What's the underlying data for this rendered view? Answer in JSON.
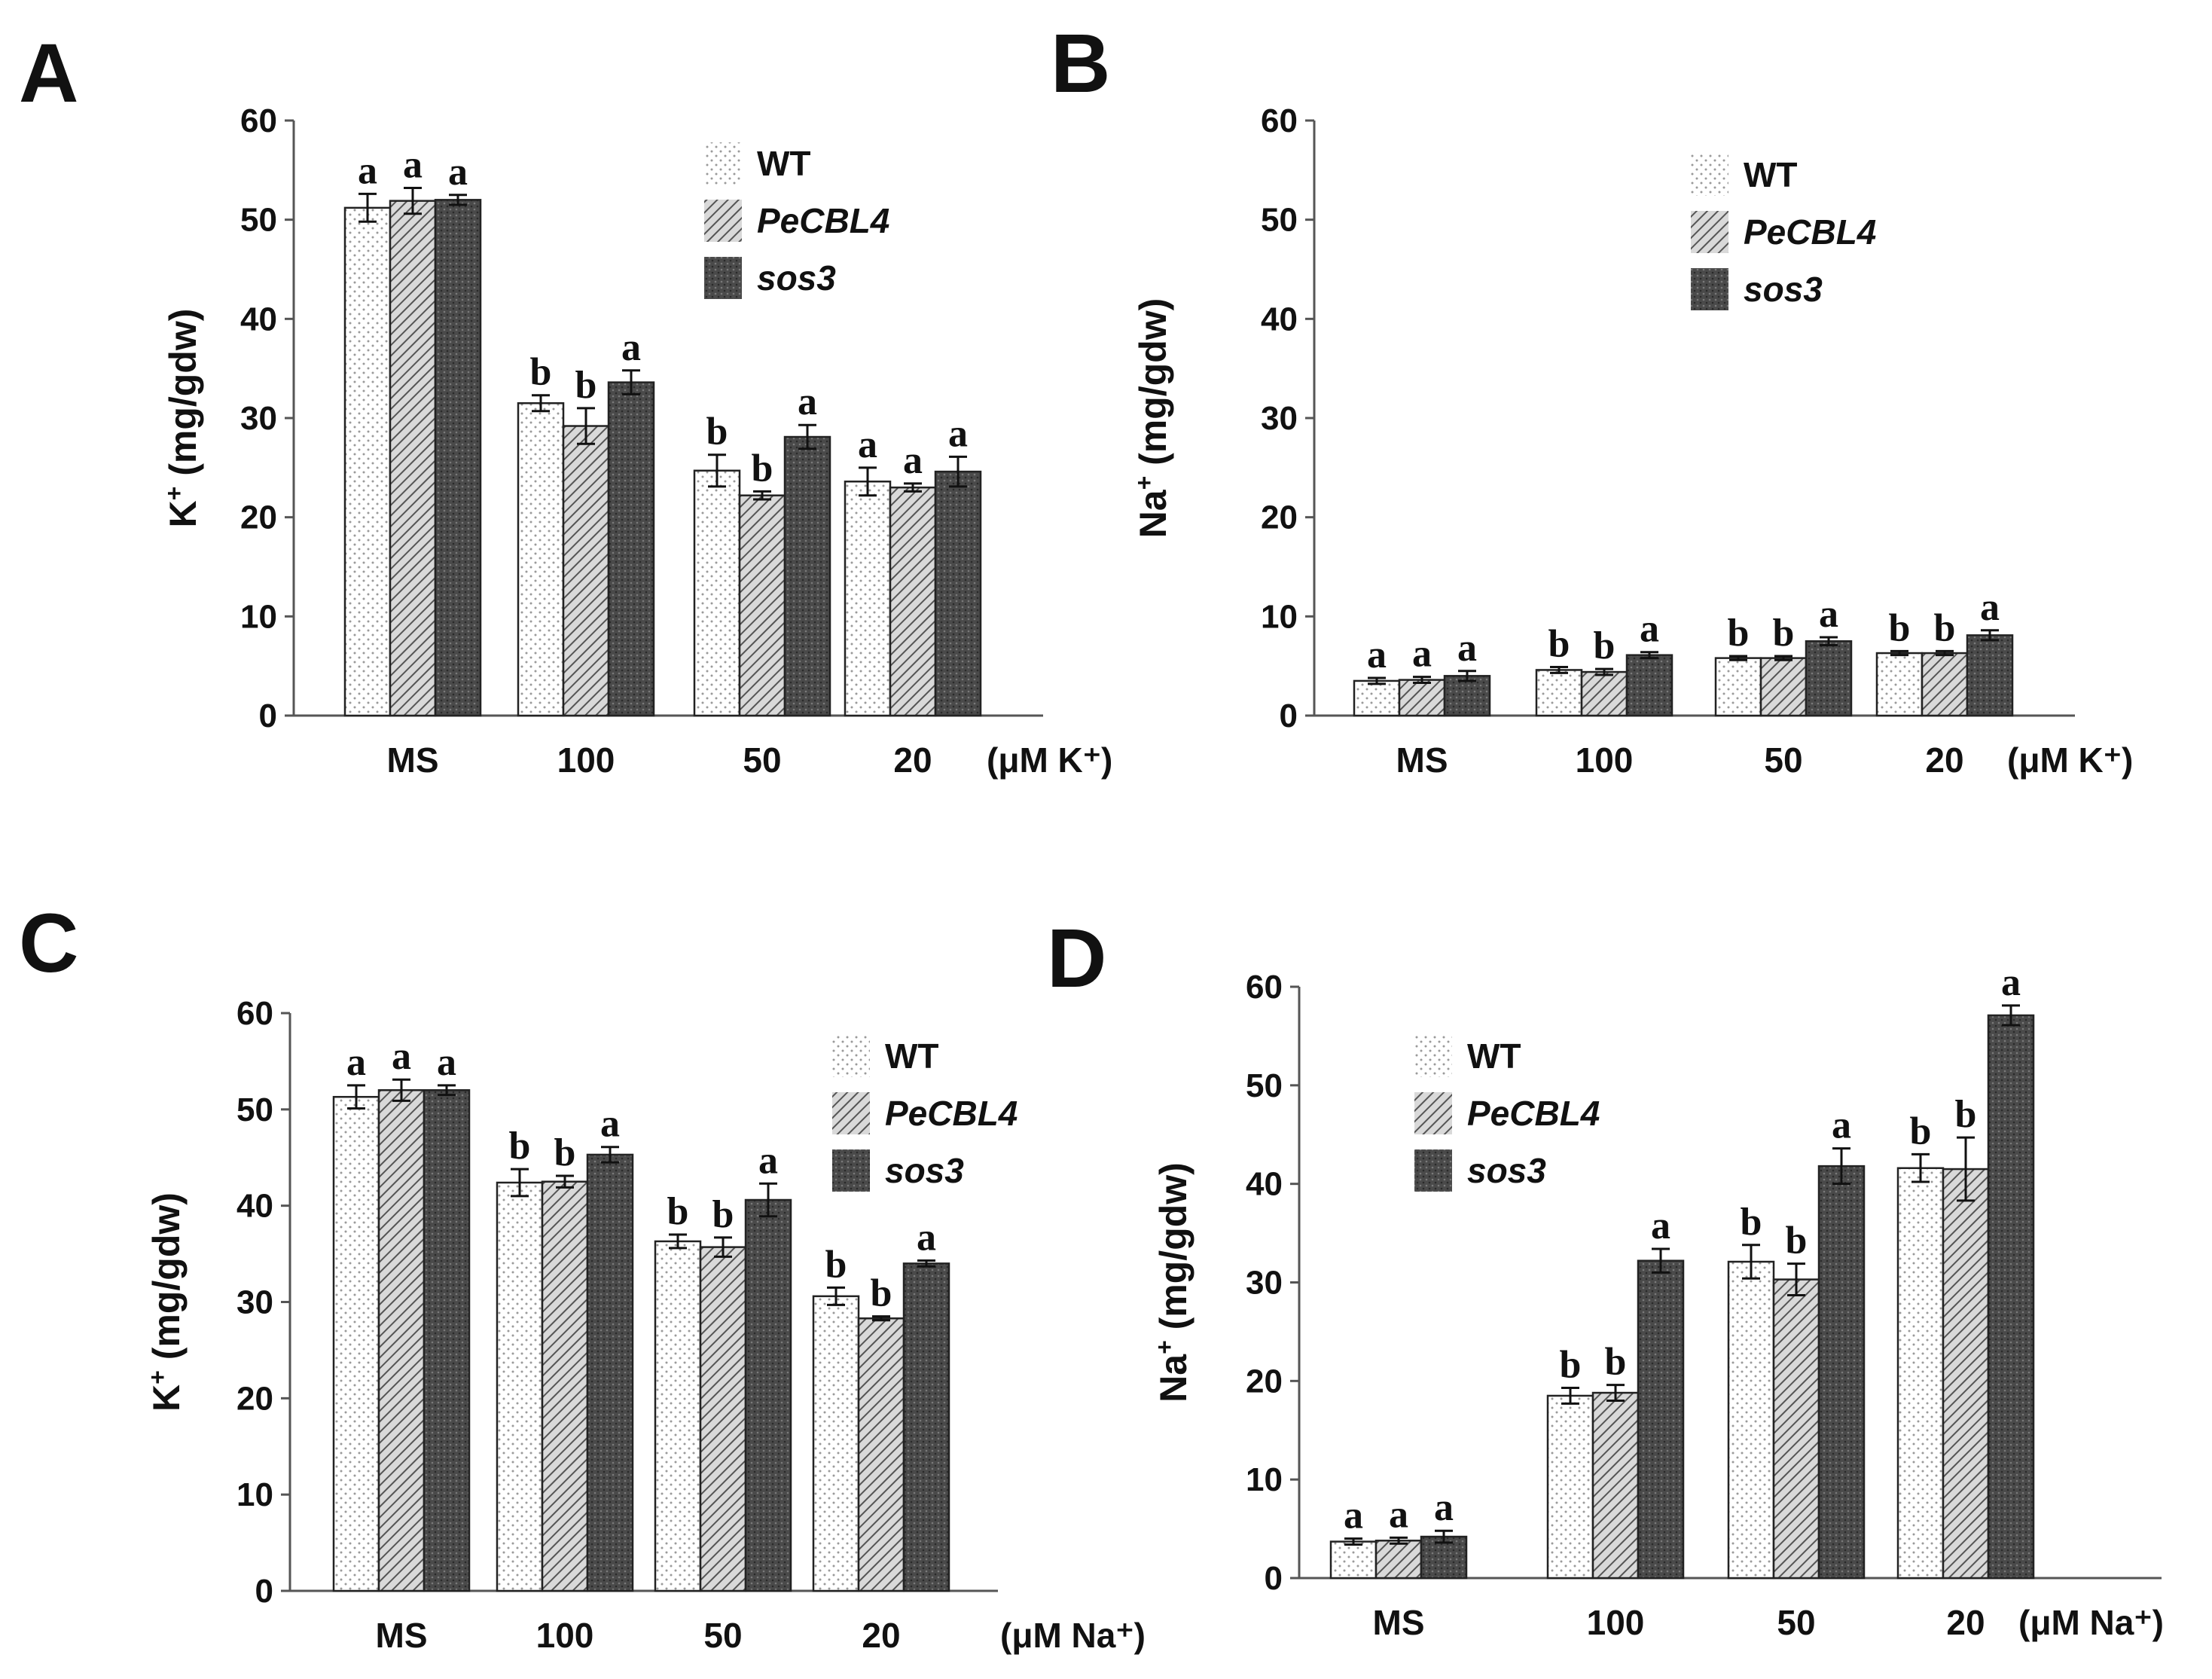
{
  "figure": {
    "series": [
      {
        "name": "WT",
        "italic": false,
        "pattern": "dots"
      },
      {
        "name": "PeCBL4",
        "italic": true,
        "pattern": "hatch"
      },
      {
        "name": "sos3",
        "italic": true,
        "pattern": "dark"
      }
    ],
    "colors": {
      "axis": "#555555",
      "bar_stroke": "#222222",
      "wt_fill": "#ffffff",
      "hatch_bg": "#d9d9d9",
      "hatch_line": "#555555",
      "dark_fill": "#4a4a4a",
      "dark_dot": "#2a2a2a",
      "dot": "#9a9a9a"
    }
  },
  "chart_data": [
    {
      "panel": "A",
      "type": "bar",
      "ylabel": "K+ (mg/gdw)",
      "ylabel_base": "K",
      "ylabel_sup": "+",
      "ylabel_rest": " (mg/gdw)",
      "ylim": [
        0,
        60
      ],
      "yticks": [
        0,
        10,
        20,
        30,
        40,
        50,
        60
      ],
      "categories": [
        "MS",
        "100",
        "50",
        "20"
      ],
      "unit_label": "(μM K⁺)",
      "legend_position": "top-right",
      "series": [
        {
          "name": "WT",
          "values": [
            51.2,
            31.5,
            24.7,
            23.6
          ],
          "errors": [
            1.4,
            0.8,
            1.6,
            1.4
          ],
          "labels": [
            "a",
            "b",
            "b",
            "a"
          ]
        },
        {
          "name": "PeCBL4",
          "values": [
            51.9,
            29.2,
            22.2,
            23.0
          ],
          "errors": [
            1.3,
            1.8,
            0.4,
            0.4
          ],
          "labels": [
            "a",
            "b",
            "b",
            "a"
          ]
        },
        {
          "name": "sos3",
          "values": [
            52.0,
            33.6,
            28.1,
            24.6
          ],
          "errors": [
            0.5,
            1.2,
            1.2,
            1.5
          ],
          "labels": [
            "a",
            "a",
            "a",
            "a"
          ]
        }
      ]
    },
    {
      "panel": "B",
      "type": "bar",
      "ylabel": "Na+ (mg/gdw)",
      "ylabel_base": "Na",
      "ylabel_sup": "+",
      "ylabel_rest": " (mg/gdw)",
      "ylim": [
        0,
        60
      ],
      "yticks": [
        0,
        10,
        20,
        30,
        40,
        50,
        60
      ],
      "categories": [
        "MS",
        "100",
        "50",
        "20"
      ],
      "unit_label": "(μM K⁺)",
      "legend_position": "top-right",
      "series": [
        {
          "name": "WT",
          "values": [
            3.5,
            4.6,
            5.8,
            6.3
          ],
          "errors": [
            0.3,
            0.3,
            0.2,
            0.2
          ],
          "labels": [
            "a",
            "b",
            "b",
            "b"
          ]
        },
        {
          "name": "PeCBL4",
          "values": [
            3.6,
            4.4,
            5.8,
            6.3
          ],
          "errors": [
            0.3,
            0.3,
            0.2,
            0.2
          ],
          "labels": [
            "a",
            "b",
            "b",
            "b"
          ]
        },
        {
          "name": "sos3",
          "values": [
            4.0,
            6.1,
            7.5,
            8.1
          ],
          "errors": [
            0.5,
            0.3,
            0.4,
            0.5
          ],
          "labels": [
            "a",
            "a",
            "a",
            "a"
          ]
        }
      ]
    },
    {
      "panel": "C",
      "type": "bar",
      "ylabel": "K+ (mg/gdw)",
      "ylabel_base": "K",
      "ylabel_sup": "+",
      "ylabel_rest": " (mg/gdw)",
      "ylim": [
        0,
        60
      ],
      "yticks": [
        0,
        10,
        20,
        30,
        40,
        50,
        60
      ],
      "categories": [
        "MS",
        "100",
        "50",
        "20"
      ],
      "unit_label": "(μM Na⁺)",
      "legend_position": "top-right",
      "series": [
        {
          "name": "WT",
          "values": [
            51.3,
            42.4,
            36.3,
            30.6
          ],
          "errors": [
            1.2,
            1.4,
            0.7,
            0.9
          ],
          "labels": [
            "a",
            "b",
            "b",
            "b"
          ]
        },
        {
          "name": "PeCBL4",
          "values": [
            52.0,
            42.5,
            35.7,
            28.3
          ],
          "errors": [
            1.1,
            0.6,
            1.0,
            0.2
          ],
          "labels": [
            "a",
            "b",
            "b",
            "b"
          ]
        },
        {
          "name": "sos3",
          "values": [
            52.0,
            45.3,
            40.6,
            34.0
          ],
          "errors": [
            0.5,
            0.8,
            1.7,
            0.3
          ],
          "labels": [
            "a",
            "a",
            "a",
            "a"
          ]
        }
      ]
    },
    {
      "panel": "D",
      "type": "bar",
      "ylabel": "Na+ (mg/gdw)",
      "ylabel_base": "Na",
      "ylabel_sup": "+",
      "ylabel_rest": " (mg/gdw)",
      "ylim": [
        0,
        60
      ],
      "yticks": [
        0,
        10,
        20,
        30,
        40,
        50,
        60
      ],
      "categories": [
        "MS",
        "100",
        "50",
        "20"
      ],
      "unit_label": "(μM Na⁺)",
      "legend_position": "top-left",
      "series": [
        {
          "name": "WT",
          "values": [
            3.7,
            18.5,
            32.1,
            41.6
          ],
          "errors": [
            0.3,
            0.8,
            1.7,
            1.4
          ],
          "labels": [
            "a",
            "b",
            "b",
            "b"
          ]
        },
        {
          "name": "PeCBL4",
          "values": [
            3.8,
            18.8,
            30.3,
            41.5
          ],
          "errors": [
            0.3,
            0.8,
            1.6,
            3.2
          ],
          "labels": [
            "a",
            "b",
            "b",
            "b"
          ]
        },
        {
          "name": "sos3",
          "values": [
            4.2,
            32.2,
            41.8,
            57.1
          ],
          "errors": [
            0.6,
            1.2,
            1.8,
            1.0
          ],
          "labels": [
            "a",
            "a",
            "a",
            "a"
          ]
        }
      ]
    }
  ]
}
